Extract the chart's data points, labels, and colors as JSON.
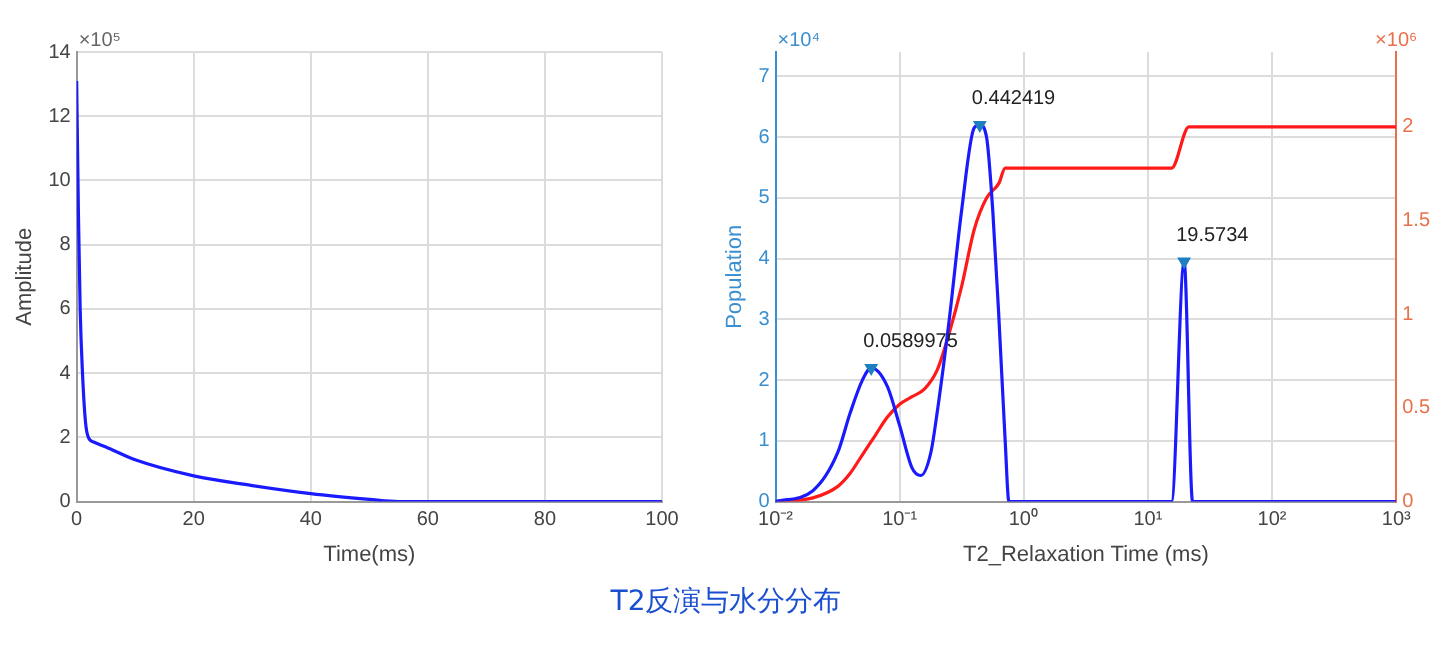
{
  "chart_data": [
    {
      "type": "line",
      "xlabel": "Time(ms)",
      "ylabel": "Amplitude",
      "xlim": [
        0,
        100
      ],
      "ylim": [
        0,
        14
      ],
      "xticks": [
        0,
        20,
        40,
        60,
        80,
        100
      ],
      "yticks": [
        0,
        2,
        4,
        6,
        8,
        10,
        12,
        14
      ],
      "grid": true,
      "legend": false,
      "series": [
        {
          "color": "#1a1aff",
          "x": [
            0,
            0.3,
            0.6,
            1,
            1.5,
            2,
            3,
            5,
            10,
            20,
            30,
            40,
            50,
            55,
            100
          ],
          "values": [
            13.1,
            9,
            6,
            4,
            2.5,
            2,
            1.85,
            1.7,
            1.3,
            0.8,
            0.5,
            0.25,
            0.07,
            0,
            0
          ]
        }
      ],
      "annotations": [
        "×10⁵"
      ]
    },
    {
      "type": "line",
      "xlabel": "T2_Relaxation Time (ms)",
      "ylabel": "Population",
      "log": "x",
      "xlim": [
        0.01,
        1000
      ],
      "ylim": [
        0,
        7.4
      ],
      "y2lim": [
        0,
        2.4
      ],
      "xticks": [
        {
          "value": 0.01,
          "label": "10⁻²"
        },
        {
          "value": 0.1,
          "label": "10⁻¹"
        },
        {
          "value": 1,
          "label": "10⁰"
        },
        {
          "value": 10,
          "label": "10¹"
        },
        {
          "value": 100,
          "label": "10²"
        },
        {
          "value": 1000,
          "label": "10³"
        }
      ],
      "yticks": [
        0,
        1,
        2,
        3,
        4,
        5,
        6,
        7
      ],
      "y2ticks": [
        0,
        0.5,
        1,
        1.5,
        2
      ],
      "grid": true,
      "legend": false,
      "series": [
        {
          "color": "#1a1aff",
          "x": [
            0.01,
            0.02,
            0.0316,
            0.0398,
            0.0501,
            0.0589975,
            0.0794,
            0.1,
            0.126,
            0.148,
            0.178,
            0.2,
            0.251,
            0.316,
            0.398,
            0.442419,
            0.501,
            0.562,
            0.631,
            0.708,
            0.759,
            15.5,
            19.5734,
            22.9,
            1000
          ],
          "values": [
            0,
            0.18,
            0.8,
            1.45,
            2,
            2.2,
            1.9,
            1.25,
            0.55,
            0.43,
            0.8,
            1.45,
            3,
            4.8,
            6.15,
            6.2,
            6,
            4.8,
            3,
            1,
            0,
            0,
            3.95,
            0,
            0
          ]
        },
        {
          "color": "#ff1a1a",
          "axis": "y2",
          "x": [
            0.01,
            0.02,
            0.0316,
            0.0398,
            0.0501,
            0.0631,
            0.0794,
            0.1,
            0.126,
            0.158,
            0.2,
            0.251,
            0.316,
            0.398,
            0.501,
            0.631,
            0.708,
            15.5,
            21.4,
            1000
          ],
          "values": [
            0,
            0.02,
            0.08,
            0.15,
            0.25,
            0.35,
            0.45,
            0.52,
            0.56,
            0.6,
            0.7,
            0.9,
            1.15,
            1.45,
            1.62,
            1.7,
            1.78,
            1.78,
            2,
            2
          ]
        },
        {
          "type": "scatter",
          "color": "#1e7fc0",
          "marker": "triangle",
          "x": [
            0.0589975,
            0.442419,
            19.5734
          ],
          "values": [
            2.2,
            6.2,
            3.95
          ]
        }
      ],
      "annotations": [
        "×10⁴",
        "×10⁶",
        {
          "text": "0.0589975",
          "x": 0.0589975,
          "y": 2.2
        },
        {
          "text": "0.442419",
          "x": 0.442419,
          "y": 6.2
        },
        {
          "text": "19.5734",
          "x": 19.5734,
          "y": 3.95
        },
        "T2反演与水分分布"
      ]
    }
  ]
}
